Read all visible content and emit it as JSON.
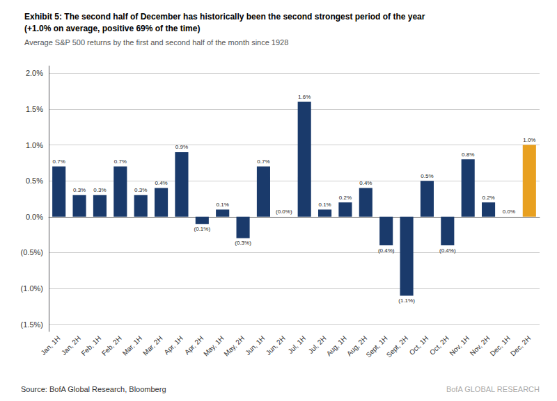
{
  "chart_data": {
    "type": "bar",
    "title": "Exhibit 5: The second half of December has historically been the second strongest period of the year\n(+1.0% on average, positive 69% of the time)",
    "subtitle": "Average S&P 500 returns by the first and second half of the month since 1928",
    "categories": [
      "Jan, 1H",
      "Jan, 2H",
      "Feb, 1H",
      "Feb, 2H",
      "Mar, 1H",
      "Mar, 2H",
      "Apr, 1H",
      "Apr, 2H",
      "May, 1H",
      "May, 2H",
      "Jun, 1H",
      "Jun, 2H",
      "Jul, 1H",
      "Jul, 2H",
      "Aug, 1H",
      "Aug, 2H",
      "Sept, 1H",
      "Sept, 2H",
      "Oct, 1H",
      "Oct, 2H",
      "Nov, 1H",
      "Nov, 2H",
      "Dec, 1H",
      "Dec, 2H"
    ],
    "values": [
      0.7,
      0.3,
      0.3,
      0.7,
      0.3,
      0.4,
      0.9,
      -0.1,
      0.1,
      -0.3,
      0.7,
      -0.0,
      1.6,
      0.1,
      0.2,
      0.4,
      -0.4,
      -1.1,
      0.5,
      -0.4,
      0.8,
      0.2,
      0.0,
      1.0
    ],
    "value_labels": [
      "0.7%",
      "0.3%",
      "0.3%",
      "0.7%",
      "0.3%",
      "0.4%",
      "0.9%",
      "(0.1%)",
      "0.1%",
      "(0.3%)",
      "0.7%",
      "(0.0%)",
      "1.6%",
      "0.1%",
      "0.2%",
      "0.4%",
      "(0.4%)",
      "(1.1%)",
      "0.5%",
      "(0.4%)",
      "0.8%",
      "0.2%",
      "0.0%",
      "1.0%"
    ],
    "colors": [
      "#1a3a6b",
      "#1a3a6b",
      "#1a3a6b",
      "#1a3a6b",
      "#1a3a6b",
      "#1a3a6b",
      "#1a3a6b",
      "#1a3a6b",
      "#1a3a6b",
      "#1a3a6b",
      "#1a3a6b",
      "#1a3a6b",
      "#1a3a6b",
      "#1a3a6b",
      "#1a3a6b",
      "#1a3a6b",
      "#1a3a6b",
      "#1a3a6b",
      "#1a3a6b",
      "#1a3a6b",
      "#1a3a6b",
      "#1a3a6b",
      "#1a3a6b",
      "#e8a020"
    ],
    "ylim": [
      -1.6,
      2.1
    ],
    "yticks": [
      {
        "value": -1.5,
        "label": "(1.5%)"
      },
      {
        "value": -1.0,
        "label": "(1.0%)"
      },
      {
        "value": -0.5,
        "label": "(0.5%)"
      },
      {
        "value": 0.0,
        "label": "0.0%"
      },
      {
        "value": 0.5,
        "label": "0.5%"
      },
      {
        "value": 1.0,
        "label": "1.0%"
      },
      {
        "value": 1.5,
        "label": "1.5%"
      },
      {
        "value": 2.0,
        "label": "2.0%"
      }
    ],
    "annotations": [
      "Source: BofA Global Research, Bloomberg",
      "BofA GLOBAL RESEARCH"
    ],
    "data_labels": true,
    "grid": true
  }
}
